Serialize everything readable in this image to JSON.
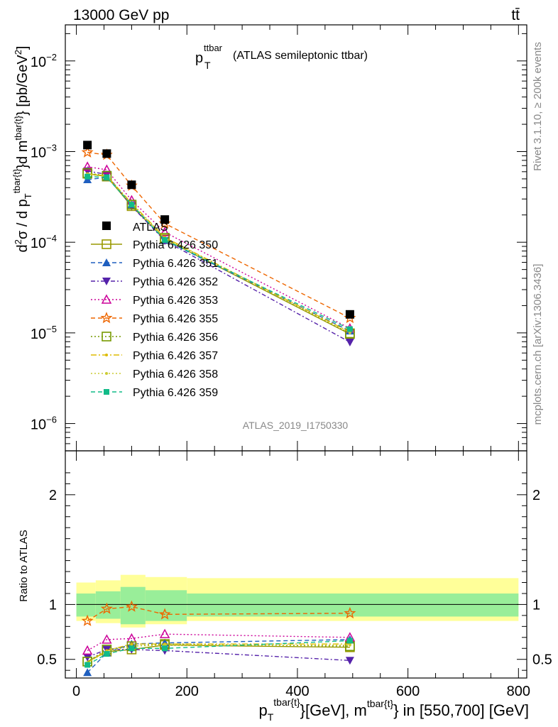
{
  "header": {
    "energy": "13000 GeV pp",
    "process": "tt̄",
    "title_main": "p",
    "title_sub": "T",
    "title_sup": "ttbar",
    "title_rest": "(ATLAS semileptonic ttbar)",
    "rivet_label": "Rivet 3.1.10, ≥ 200k events",
    "mcplots_label": "mcplots.cern.ch [arXiv:1306.3436]",
    "analysis_id": "ATLAS_2019_I1750330"
  },
  "colors": {
    "data": "#000000",
    "s350": "#999900",
    "s351": "#1f5fbf",
    "s352": "#5522aa",
    "s353": "#cc0099",
    "s355": "#ee6600",
    "s356": "#779900",
    "s357": "#ddbb00",
    "s358": "#cccc33",
    "s359": "#11bb88",
    "band_inner": "#99ee99",
    "band_outer": "#ffff99"
  },
  "chart_data": [
    {
      "type": "line",
      "name": "main",
      "yscale": "log",
      "xlim": [
        -20,
        815
      ],
      "ylim": [
        5e-07,
        0.025
      ],
      "yticks": [
        {
          "v": 1e-06,
          "mant": "10",
          "exp": "−6"
        },
        {
          "v": 1e-05,
          "mant": "10",
          "exp": "−5"
        },
        {
          "v": 0.0001,
          "mant": "10",
          "exp": "−4"
        },
        {
          "v": 0.001,
          "mant": "10",
          "exp": "−3"
        },
        {
          "v": 0.01,
          "mant": "10",
          "exp": "−2"
        }
      ],
      "ylabel": "d²σ / d p_T^{tbar{t}} d m^{tbar{t}} [pb/GeV²]",
      "x": [
        20,
        55,
        100,
        160,
        495
      ],
      "data": {
        "name": "ATLAS",
        "values": [
          0.00118,
          0.00095,
          0.00043,
          0.000178,
          1.6e-05
        ]
      },
      "series": [
        {
          "name": "Pythia 6.426 350",
          "key": "s350",
          "values": [
            0.00057,
            0.00053,
            0.00025,
            0.000108,
            9.7e-06
          ]
        },
        {
          "name": "Pythia 6.426 351",
          "key": "s351",
          "values": [
            0.00049,
            0.00052,
            0.00026,
            0.000105,
            1.05e-05
          ]
        },
        {
          "name": "Pythia 6.426 352",
          "key": "s352",
          "values": [
            0.00061,
            0.00056,
            0.00025,
            0.000104,
            7.9e-06
          ]
        },
        {
          "name": "Pythia 6.426 353",
          "key": "s353",
          "values": [
            0.00068,
            0.00063,
            0.00029,
            0.000129,
            1.12e-05
          ]
        },
        {
          "name": "Pythia 6.426 355",
          "key": "s355",
          "values": [
            0.00098,
            0.00092,
            0.00042,
            0.000161,
            1.46e-05
          ]
        },
        {
          "name": "Pythia 6.426 356",
          "key": "s356",
          "values": [
            0.00058,
            0.00054,
            0.00026,
            0.000112,
            9.9e-06
          ]
        },
        {
          "name": "Pythia 6.426 357",
          "key": "s357",
          "values": [
            0.00057,
            0.00054,
            0.00027,
            0.000113,
            1.02e-05
          ]
        },
        {
          "name": "Pythia 6.426 358",
          "key": "s358",
          "values": [
            0.00056,
            0.00053,
            0.00026,
            0.00011,
            1e-05
          ]
        },
        {
          "name": "Pythia 6.426 359",
          "key": "s359",
          "values": [
            0.00053,
            0.00052,
            0.00026,
            0.000106,
            1.1e-05
          ]
        }
      ]
    },
    {
      "type": "line",
      "name": "ratio",
      "xlim": [
        -20,
        815
      ],
      "ylim": [
        0.33,
        2.4
      ],
      "yticks": [
        0.5,
        1,
        2
      ],
      "ytick_labels": [
        "0.5",
        "1",
        "2"
      ],
      "xticks": [
        0,
        200,
        400,
        600,
        800
      ],
      "xtick_labels": [
        "0",
        "200",
        "400",
        "600",
        "800"
      ],
      "ylabel": "Ratio to ATLAS",
      "xlabel_parts": {
        "p": "p",
        "sub": "T",
        "sup1": "tbar{t}",
        "mid": "}[GeV], m",
        "sup2": "tbar{t}",
        "tail": "} in [550,700] [GeV]"
      },
      "x": [
        20,
        55,
        100,
        160,
        495
      ],
      "band_edges": [
        0,
        35,
        80,
        125,
        200,
        800
      ],
      "band_inner": [
        [
          0.89,
          1.1
        ],
        [
          0.87,
          1.12
        ],
        [
          0.82,
          1.16
        ],
        [
          0.85,
          1.13
        ],
        [
          0.89,
          1.1
        ]
      ],
      "band_outer": [
        [
          0.85,
          1.2
        ],
        [
          0.83,
          1.22
        ],
        [
          0.79,
          1.27
        ],
        [
          0.82,
          1.25
        ],
        [
          0.85,
          1.24
        ]
      ],
      "series": [
        {
          "name": "Pythia 6.426 350",
          "key": "s350",
          "values": [
            0.48,
            0.57,
            0.59,
            0.63,
            0.61
          ]
        },
        {
          "name": "Pythia 6.426 351",
          "key": "s351",
          "values": [
            0.38,
            0.56,
            0.64,
            0.65,
            0.68
          ]
        },
        {
          "name": "Pythia 6.426 352",
          "key": "s352",
          "values": [
            0.52,
            0.59,
            0.59,
            0.58,
            0.49
          ]
        },
        {
          "name": "Pythia 6.426 353",
          "key": "s353",
          "values": [
            0.58,
            0.68,
            0.69,
            0.73,
            0.7
          ]
        },
        {
          "name": "Pythia 6.426 355",
          "key": "s355",
          "values": [
            0.85,
            0.96,
            0.98,
            0.91,
            0.92
          ]
        },
        {
          "name": "Pythia 6.426 356",
          "key": "s356",
          "values": [
            0.48,
            0.59,
            0.62,
            0.64,
            0.62
          ]
        },
        {
          "name": "Pythia 6.426 357",
          "key": "s357",
          "values": [
            0.47,
            0.58,
            0.64,
            0.64,
            0.64
          ]
        },
        {
          "name": "Pythia 6.426 358",
          "key": "s358",
          "values": [
            0.47,
            0.57,
            0.62,
            0.63,
            0.63
          ]
        },
        {
          "name": "Pythia 6.426 359",
          "key": "s359",
          "values": [
            0.45,
            0.55,
            0.6,
            0.6,
            0.67
          ]
        }
      ]
    }
  ]
}
